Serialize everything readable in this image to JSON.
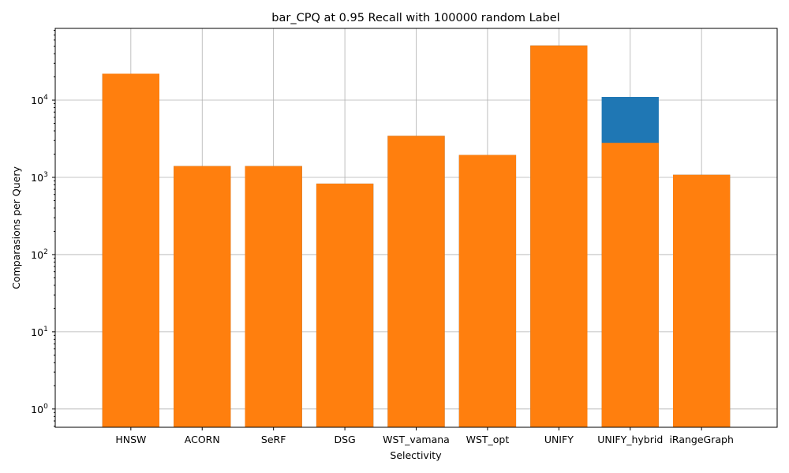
{
  "chart_data": {
    "type": "bar",
    "title": "bar_CPQ at 0.95 Recall with 100000 random Label",
    "xlabel": "Selectivity",
    "ylabel": "Comparasions per Query",
    "yscale": "log",
    "ylim": [
      0.58,
      85000
    ],
    "grid": true,
    "legend": "none",
    "categories": [
      "HNSW",
      "ACORN",
      "SeRF",
      "DSG",
      "WST_vamana",
      "WST_opt",
      "UNIFY",
      "UNIFY_hybrid",
      "iRangeGraph"
    ],
    "yticks": [
      {
        "value": 1,
        "base": "10",
        "exp": "0"
      },
      {
        "value": 10,
        "base": "10",
        "exp": "1"
      },
      {
        "value": 100,
        "base": "10",
        "exp": "2"
      },
      {
        "value": 1000,
        "base": "10",
        "exp": "3"
      },
      {
        "value": 10000,
        "base": "10",
        "exp": "4"
      }
    ],
    "series": [
      {
        "color": "#1f77b4",
        "values": [
          22000,
          1400,
          1400,
          830,
          3450,
          1950,
          51000,
          11000,
          1080
        ]
      },
      {
        "color": "#ff7f0e",
        "values": [
          22000,
          1400,
          1400,
          830,
          3450,
          1950,
          51000,
          2800,
          1080
        ]
      }
    ]
  }
}
